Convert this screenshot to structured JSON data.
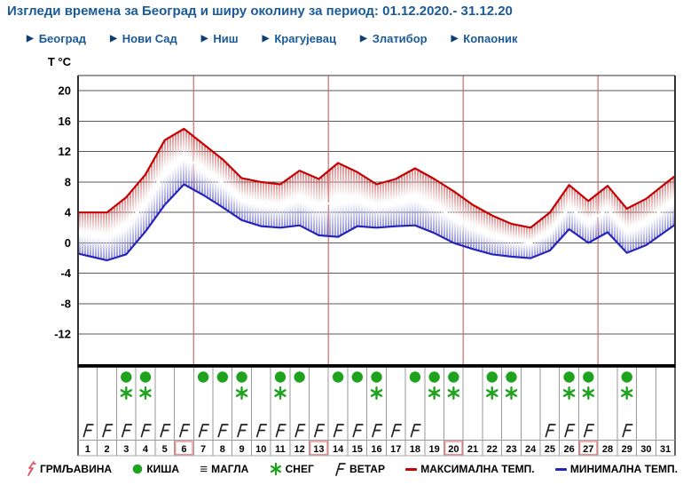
{
  "title": "Изгледи времена за Београд и ширу околину за период: 01.12.2020.- 31.12.20",
  "nav": {
    "links": [
      "Београд",
      "Нови Сад",
      "Ниш",
      "Крагујевац",
      "Златибор",
      "Копаоник"
    ]
  },
  "colors": {
    "accent_blue": "#1b5a9a",
    "max_temp": "#c40000",
    "min_temp": "#2424ba",
    "icon_green": "#1fa31f",
    "week_line": "#cd6a6a",
    "highlight_box": "#e77a7a",
    "thunder_pink": "#e05a6a",
    "gridline": "#5a5a5a"
  },
  "chart_data": {
    "type": "line",
    "title": "Изгледи времена за Београд и ширу околину за период: 01.12.2020.- 31.12.20",
    "ylabel": "T °C",
    "xlabel": "",
    "x": [
      1,
      2,
      3,
      4,
      5,
      6,
      7,
      8,
      9,
      10,
      11,
      12,
      13,
      14,
      15,
      16,
      17,
      18,
      19,
      20,
      21,
      22,
      23,
      24,
      25,
      26,
      27,
      28,
      29,
      30,
      31
    ],
    "series": [
      {
        "name": "МАКСИМАЛНА ТЕМП.",
        "values": [
          4,
          4,
          6,
          9,
          13.5,
          15,
          13,
          11,
          8.5,
          8,
          7.7,
          9.5,
          8.4,
          10.5,
          9.3,
          7.7,
          8.4,
          9.8,
          8.4,
          6.8,
          5,
          3.6,
          2.5,
          2,
          4,
          7.6,
          5.5,
          7.5,
          4.5,
          5.8,
          7.8
        ]
      },
      {
        "name": "МИНИМАЛНА ТЕМП.",
        "values": [
          -1.7,
          -2.3,
          -1.5,
          1.5,
          5,
          7.7,
          6.3,
          4.7,
          3,
          2.2,
          2,
          2.3,
          1,
          0.8,
          2.2,
          2,
          2.2,
          2.3,
          1.3,
          0,
          -0.8,
          -1.5,
          -1.8,
          -2,
          -1,
          1.8,
          0,
          1.4,
          -1.3,
          -0.3,
          1.5
        ]
      }
    ],
    "yticks": [
      20,
      16,
      12,
      8,
      4,
      0,
      -4,
      -8,
      -12
    ],
    "ylim": [
      -16,
      22
    ],
    "grid": true,
    "legend_position": "bottom",
    "week_gridlines_after_days": [
      6,
      13,
      20,
      27
    ],
    "highlighted_days": [
      6,
      13,
      20,
      27
    ],
    "icons": {
      "rain_days": [
        3,
        4,
        7,
        8,
        9,
        11,
        12,
        14,
        15,
        16,
        18,
        19,
        20,
        22,
        23,
        26,
        27,
        29
      ],
      "snow_days": [
        3,
        4,
        9,
        11,
        16,
        19,
        20,
        22,
        23,
        26,
        27,
        29
      ],
      "wind_days": [
        1,
        2,
        3,
        4,
        5,
        6,
        7,
        8,
        9,
        10,
        11,
        12,
        13,
        14,
        15,
        16,
        17,
        18,
        25,
        26,
        27,
        29
      ]
    }
  },
  "legend": {
    "items": [
      {
        "icon": "thunder",
        "label": "ГРМЉАВИНА"
      },
      {
        "icon": "rain",
        "label": "КИША"
      },
      {
        "icon": "fog",
        "label": "МАГЛА"
      },
      {
        "icon": "snow",
        "label": "СНЕГ"
      },
      {
        "icon": "wind",
        "label": "ВЕТАР"
      },
      {
        "icon": "max-line",
        "label": "МАКСИМАЛНА ТЕМП."
      },
      {
        "icon": "min-line",
        "label": "МИНИМАЛНА ТЕМП."
      }
    ]
  }
}
